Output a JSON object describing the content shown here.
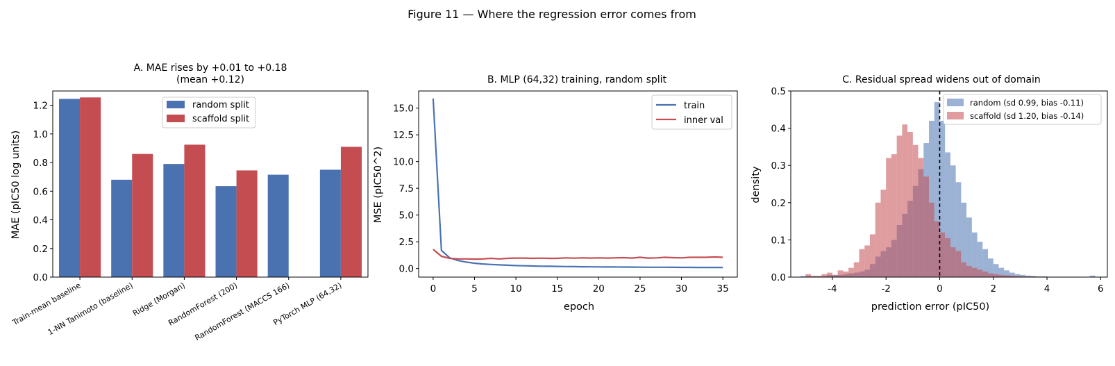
{
  "figure": {
    "title": "Figure 11 — Where the regression error comes from"
  },
  "colors": {
    "blue": "#4a72b0",
    "red": "#c44d52",
    "black": "#000000"
  },
  "chart_data": [
    {
      "type": "bar",
      "title_line1": "A. MAE rises by +0.01 to +0.18",
      "title_line2": "(mean +0.12)",
      "xlabel": "",
      "ylabel": "MAE (pIC50 log units)",
      "ylim": [
        0,
        1.3
      ],
      "yticks": [
        0.0,
        0.2,
        0.4,
        0.6,
        0.8,
        1.0,
        1.2
      ],
      "ytick_labels": [
        "0.0",
        "0.2",
        "0.4",
        "0.6",
        "0.8",
        "1.0",
        "1.2"
      ],
      "categories": [
        "Train-mean baseline",
        "1-NN Tanimoto (baseline)",
        "Ridge (Morgan)",
        "RandomForest (200)",
        "RandomForest (MACCS 166)",
        "PyTorch MLP (64,32)"
      ],
      "series": [
        {
          "name": "random split",
          "color": "#4a72b0",
          "values": [
            1.245,
            0.68,
            0.79,
            0.635,
            0.715,
            0.75
          ]
        },
        {
          "name": "scaffold split",
          "color": "#c44d52",
          "values": [
            1.255,
            0.86,
            0.925,
            0.745,
            null,
            0.91
          ]
        }
      ],
      "legend": "upper center"
    },
    {
      "type": "line",
      "title": "B. MLP (64,32) training, random split",
      "xlabel": "epoch",
      "ylabel": "MSE (pIC50^2)",
      "xlim": [
        -1.75,
        36.75
      ],
      "ylim": [
        -0.8,
        16.6
      ],
      "xticks": [
        0,
        5,
        10,
        15,
        20,
        25,
        30,
        35
      ],
      "xtick_labels": [
        "0",
        "5",
        "10",
        "15",
        "20",
        "25",
        "30",
        "35"
      ],
      "yticks": [
        0.0,
        2.5,
        5.0,
        7.5,
        10.0,
        12.5,
        15.0
      ],
      "ytick_labels": [
        "0.0",
        "2.5",
        "5.0",
        "7.5",
        "10.0",
        "12.5",
        "15.0"
      ],
      "x": [
        0,
        1,
        2,
        3,
        4,
        5,
        6,
        7,
        8,
        9,
        10,
        11,
        12,
        13,
        14,
        15,
        16,
        17,
        18,
        19,
        20,
        21,
        22,
        23,
        24,
        25,
        26,
        27,
        28,
        29,
        30,
        31,
        32,
        33,
        34,
        35
      ],
      "series": [
        {
          "name": "train",
          "color": "#4a72b0",
          "values": [
            15.9,
            1.7,
            1.0,
            0.75,
            0.6,
            0.5,
            0.43,
            0.38,
            0.34,
            0.31,
            0.28,
            0.26,
            0.24,
            0.22,
            0.21,
            0.2,
            0.19,
            0.18,
            0.17,
            0.16,
            0.155,
            0.15,
            0.145,
            0.14,
            0.135,
            0.13,
            0.125,
            0.12,
            0.12,
            0.115,
            0.11,
            0.11,
            0.105,
            0.1,
            0.1,
            0.1
          ]
        },
        {
          "name": "inner val",
          "color": "#c44d52",
          "values": [
            1.8,
            1.15,
            0.95,
            0.9,
            0.9,
            0.88,
            0.9,
            0.95,
            0.9,
            0.95,
            0.98,
            0.98,
            0.95,
            0.97,
            0.95,
            0.95,
            1.0,
            0.97,
            1.0,
            0.98,
            1.0,
            0.98,
            1.0,
            1.02,
            0.98,
            1.05,
            0.98,
            1.0,
            1.05,
            1.02,
            1.0,
            1.05,
            1.05,
            1.05,
            1.08,
            1.05
          ]
        }
      ],
      "legend": "upper right"
    },
    {
      "type": "histogram",
      "title": "C. Residual spread widens out of domain",
      "xlabel": "prediction error (pIC50)",
      "ylabel": "density",
      "xlim": [
        -5.55,
        6.25
      ],
      "ylim": [
        0,
        0.5
      ],
      "xticks": [
        -4,
        -2,
        0,
        2,
        4,
        6
      ],
      "xtick_labels": [
        "-4",
        "-2",
        "0",
        "2",
        "4",
        "6"
      ],
      "yticks": [
        0.0,
        0.1,
        0.2,
        0.3,
        0.4,
        0.5
      ],
      "ytick_labels": [
        "0.0",
        "0.1",
        "0.2",
        "0.3",
        "0.4",
        "0.5"
      ],
      "vline_x": 0,
      "series": [
        {
          "name": "random (sd 0.99, bias -0.11)",
          "color": "#4a72b0",
          "opacity": 0.55,
          "bin_width": 0.2,
          "bin_start": -5.2,
          "values": [
            0.003,
            0.003,
            0.003,
            0.003,
            0.003,
            0.006,
            0.006,
            0.006,
            0.008,
            0.01,
            0.012,
            0.015,
            0.02,
            0.035,
            0.055,
            0.07,
            0.08,
            0.1,
            0.14,
            0.17,
            0.205,
            0.245,
            0.29,
            0.36,
            0.42,
            0.47,
            0.42,
            0.335,
            0.3,
            0.255,
            0.2,
            0.16,
            0.12,
            0.095,
            0.075,
            0.05,
            0.035,
            0.025,
            0.018,
            0.012,
            0.008,
            0.006,
            0.004,
            0.003,
            0.002,
            0.002,
            0.001,
            0.001,
            0.001,
            0.001,
            0.001,
            0.001,
            0.0,
            0.0,
            0.004
          ]
        },
        {
          "name": "scaffold (sd 1.20, bias -0.14)",
          "color": "#c44d52",
          "opacity": 0.55,
          "bin_width": 0.2,
          "bin_start": -5.0,
          "values": [
            0.008,
            0.003,
            0.003,
            0.008,
            0.012,
            0.005,
            0.018,
            0.015,
            0.025,
            0.04,
            0.075,
            0.085,
            0.115,
            0.2,
            0.235,
            0.32,
            0.33,
            0.38,
            0.41,
            0.39,
            0.355,
            0.32,
            0.27,
            0.2,
            0.15,
            0.12,
            0.105,
            0.08,
            0.07,
            0.04,
            0.03,
            0.025,
            0.02,
            0.015,
            0.01,
            0.008,
            0.006,
            0.005,
            0.004,
            0.003,
            0.002,
            0.002,
            0.002,
            0.001,
            0.001,
            0.0,
            0.0,
            0.0,
            0.0,
            0.0
          ]
        }
      ],
      "legend": "upper right"
    }
  ]
}
